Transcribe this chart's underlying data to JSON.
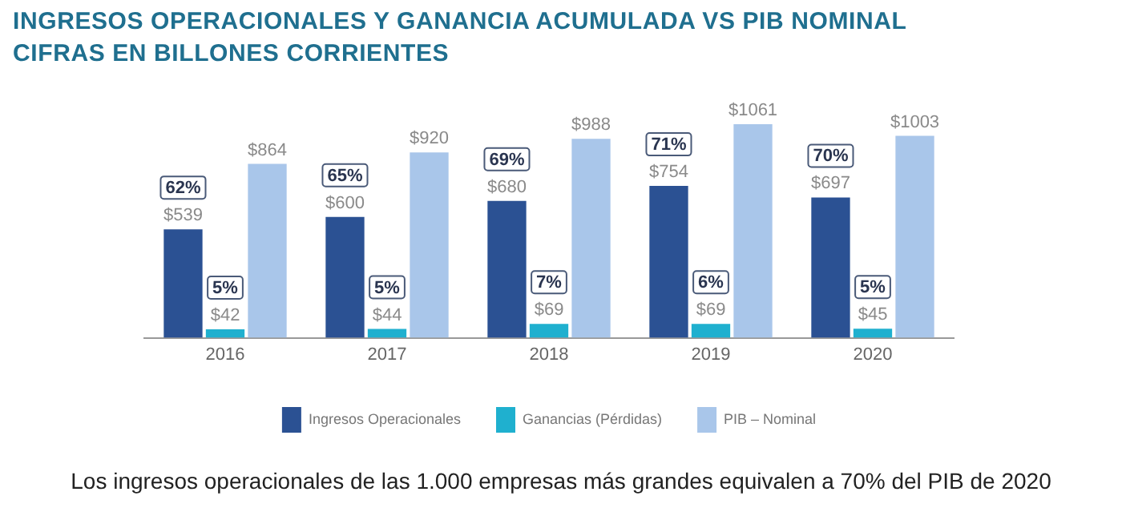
{
  "chart_data": {
    "type": "bar",
    "title": "INGRESOS OPERACIONALES Y GANANCIA ACUMULADA VS PIB NOMINAL CIFRAS EN BILLONES CORRIENTES",
    "categories": [
      "2016",
      "2017",
      "2018",
      "2019",
      "2020"
    ],
    "series": [
      {
        "name": "Ingresos Operacionales",
        "color": "#2b5193",
        "values": [
          539,
          600,
          680,
          754,
          697
        ],
        "value_labels": [
          "$539",
          "$600",
          "$680",
          "$754",
          "$697"
        ]
      },
      {
        "name": "Ganancias (Pérdidas)",
        "color": "#1fb0cf",
        "values": [
          42,
          44,
          69,
          69,
          45
        ],
        "value_labels": [
          "$42",
          "$44",
          "$69",
          "$69",
          "$45"
        ]
      },
      {
        "name": "PIB – Nominal",
        "color": "#a9c6ea",
        "values": [
          864,
          920,
          988,
          1061,
          1003
        ],
        "value_labels": [
          "$864",
          "$920",
          "$988",
          "$1061",
          "$1003"
        ]
      }
    ],
    "annotations": [
      "62%",
      "65%",
      "69%",
      "71%",
      "70%",
      "5%",
      "5%",
      "7%",
      "6%",
      "5%",
      "Los ingresos operacionales de las 1.000 empresas más grandes equivalen a 70% del PIB de 2020"
    ],
    "grid": false,
    "legend": "bottom"
  }
}
